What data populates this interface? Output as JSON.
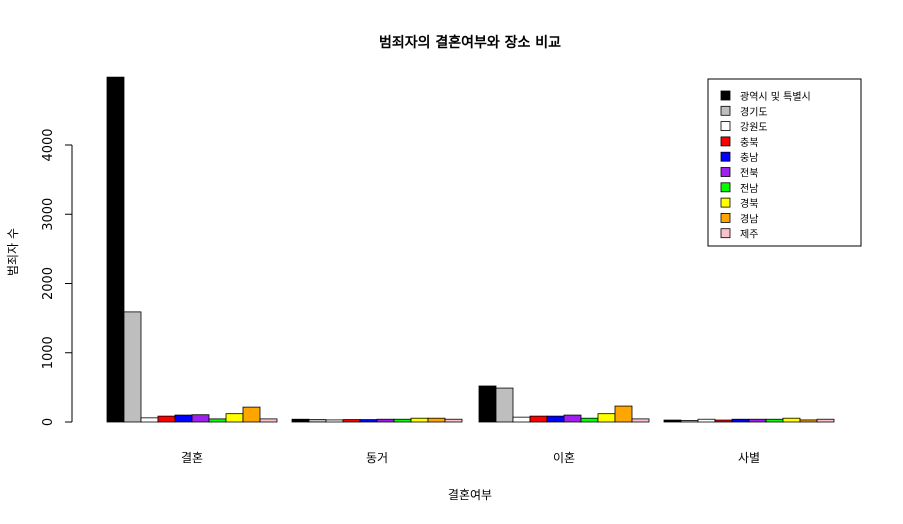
{
  "chart_data": {
    "type": "bar",
    "title": "범죄자의 결혼여부와 장소 비교",
    "xlabel": "결혼여부",
    "ylabel": "범죄자 수",
    "categories": [
      "결혼",
      "동거",
      "이혼",
      "사별"
    ],
    "ylim": [
      0,
      5000
    ],
    "yticks": [
      0,
      1000,
      2000,
      3000,
      4000
    ],
    "legend_position": "top-right",
    "grid": false,
    "series": [
      {
        "name": "광역시 및 특별시",
        "color": "#000000",
        "values": [
          4980,
          40,
          520,
          28
        ]
      },
      {
        "name": "경기도",
        "color": "#bebebe",
        "values": [
          1590,
          35,
          490,
          22
        ]
      },
      {
        "name": "강원도",
        "color": "#ffffff",
        "values": [
          60,
          30,
          70,
          40
        ]
      },
      {
        "name": "충북",
        "color": "#ff0000",
        "values": [
          85,
          35,
          85,
          28
        ]
      },
      {
        "name": "충남",
        "color": "#0000ff",
        "values": [
          100,
          35,
          85,
          40
        ]
      },
      {
        "name": "전북",
        "color": "#a020f0",
        "values": [
          105,
          40,
          100,
          40
        ]
      },
      {
        "name": "전남",
        "color": "#00ff00",
        "values": [
          45,
          40,
          55,
          40
        ]
      },
      {
        "name": "경북",
        "color": "#ffff00",
        "values": [
          120,
          55,
          120,
          55
        ]
      },
      {
        "name": "경남",
        "color": "#ffa500",
        "values": [
          215,
          55,
          230,
          30
        ]
      },
      {
        "name": "제주",
        "color": "#ffc0cb",
        "values": [
          45,
          40,
          45,
          40
        ]
      }
    ]
  }
}
